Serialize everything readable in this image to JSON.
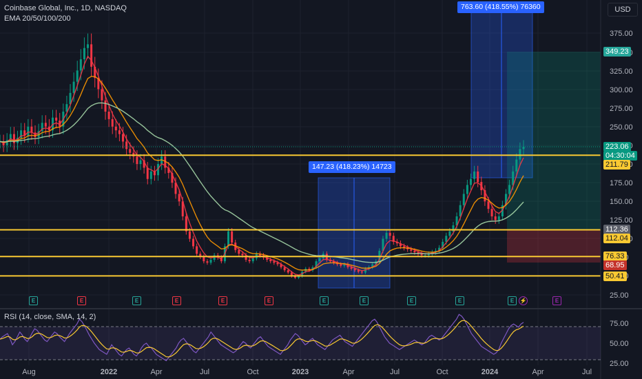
{
  "header": {
    "title": "Coinbase Global, Inc., 1D, NASDAQ",
    "indicator": "EMA 20/50/100/200",
    "currency": "USD"
  },
  "rsi": {
    "legend": "RSI (14, close, SMA, 14, 2)",
    "ticks": [
      "75.00",
      "50.00",
      "25.00"
    ],
    "series": [
      55,
      58,
      60,
      62,
      56,
      48,
      52,
      58,
      64,
      60,
      55,
      52,
      57,
      63,
      68,
      66,
      62,
      58,
      54,
      52,
      56,
      60,
      64,
      62,
      58,
      55,
      52,
      57,
      62,
      66,
      70,
      74,
      80,
      77,
      72,
      66,
      60,
      55,
      50,
      46,
      42,
      40,
      38,
      36,
      42,
      48,
      44,
      40,
      36,
      34,
      38,
      42,
      44,
      40,
      36,
      34,
      38,
      44,
      48,
      50,
      46,
      44,
      40,
      36,
      34,
      32,
      30,
      28,
      32,
      36,
      40,
      44,
      50,
      54,
      56,
      52,
      48,
      44,
      40,
      38,
      42,
      46,
      50,
      54,
      58,
      64,
      60,
      56,
      52,
      48,
      46,
      44,
      42,
      40,
      38,
      40,
      44,
      48,
      52,
      50,
      46,
      44,
      48,
      52,
      56,
      58,
      54,
      50,
      46,
      44,
      42,
      40,
      38,
      36,
      40,
      44,
      48,
      54,
      58,
      62,
      60,
      56,
      52,
      48,
      50,
      54,
      56,
      52,
      48,
      46,
      44,
      42,
      46,
      50,
      54,
      56,
      58,
      60,
      56,
      52,
      50,
      48,
      46,
      50,
      54,
      58,
      62,
      66,
      70,
      74,
      78,
      80,
      76,
      70,
      64,
      58,
      54,
      50,
      48,
      46,
      44,
      42,
      44,
      46,
      48,
      50,
      52,
      54,
      52,
      50,
      48,
      50,
      54,
      58,
      60,
      58,
      56,
      54,
      56,
      60,
      64,
      68,
      72,
      76,
      80,
      86,
      84,
      80,
      74,
      68,
      62,
      58,
      54,
      50,
      46,
      44,
      42,
      40,
      38,
      36,
      38,
      42,
      50,
      56,
      62,
      68,
      72,
      74,
      72,
      70,
      74,
      76
    ]
  },
  "price_axis": {
    "ticks": [
      "375.00",
      "350.00",
      "325.00",
      "300.00",
      "275.00",
      "250.00",
      "225.00",
      "200.00",
      "175.00",
      "150.00",
      "125.00",
      "100.00",
      "75.00",
      "50.00",
      "25.00"
    ]
  },
  "time_axis": {
    "labels": [
      "Aug",
      "2022",
      "Apr",
      "Jul",
      "Oct",
      "2023",
      "Apr",
      "Jul",
      "Oct",
      "2024",
      "Apr",
      "Jul"
    ]
  },
  "price_badges": [
    {
      "text": "349.23",
      "bg": "#26a69a",
      "fg": "#ffffff"
    },
    {
      "text": "223.06",
      "bg": "#089981",
      "fg": "#ffffff"
    },
    {
      "text": "04:30:04",
      "bg": "#089981",
      "fg": "#ffffff"
    },
    {
      "text": "211.79",
      "bg": "#f9c932",
      "fg": "#131722"
    },
    {
      "text": "112.36",
      "bg": "#5d606b",
      "fg": "#ffffff"
    },
    {
      "text": "112.04",
      "bg": "#f9c932",
      "fg": "#131722"
    },
    {
      "text": "76.33",
      "bg": "#f9c932",
      "fg": "#131722"
    },
    {
      "text": "68.95",
      "bg": "#c4332b",
      "fg": "#ffffff"
    },
    {
      "text": "50.41",
      "bg": "#f9c932",
      "fg": "#131722"
    }
  ],
  "measurements": [
    {
      "label": "147.23 (418.23%) 14723"
    },
    {
      "label": "763.60 (418.55%) 76360"
    }
  ],
  "events": [
    "E",
    "E",
    "E",
    "E",
    "E",
    "E",
    "E",
    "E",
    "E",
    "E",
    "E",
    "E",
    "E"
  ],
  "chart_data": {
    "type": "line",
    "title": "Coinbase Global, Inc., 1D, NASDAQ",
    "ylim": [
      25,
      390
    ],
    "horizontal_levels": [
      211.79,
      112.04,
      76.33,
      50.41
    ],
    "last_price": 223.06,
    "ema_values_shown": [
      112.36
    ],
    "close_series": [
      230,
      225,
      232,
      240,
      228,
      235,
      245,
      238,
      250,
      242,
      236,
      244,
      255,
      250,
      245,
      262,
      258,
      250,
      270,
      280,
      295,
      310,
      325,
      340,
      355,
      360,
      330,
      315,
      300,
      285,
      270,
      260,
      250,
      245,
      240,
      230,
      220,
      215,
      210,
      200,
      205,
      195,
      180,
      190,
      185,
      200,
      210,
      195,
      188,
      175,
      160,
      150,
      130,
      110,
      100,
      90,
      80,
      76,
      70,
      68,
      72,
      78,
      75,
      70,
      90,
      110,
      95,
      85,
      80,
      78,
      72,
      70,
      74,
      80,
      78,
      75,
      72,
      70,
      68,
      66,
      62,
      58,
      55,
      50,
      48,
      50,
      56,
      60,
      58,
      62,
      70,
      74,
      80,
      72,
      70,
      68,
      66,
      64,
      66,
      62,
      60,
      58,
      56,
      55,
      60,
      62,
      66,
      70,
      84,
      100,
      108,
      104,
      96,
      94,
      90,
      88,
      86,
      84,
      82,
      80,
      78,
      78,
      80,
      82,
      84,
      88,
      96,
      104,
      110,
      118,
      130,
      145,
      160,
      172,
      180,
      190,
      176,
      165,
      150,
      140,
      130,
      125,
      130,
      145,
      160,
      172,
      190,
      206,
      220,
      223
    ]
  },
  "rsi_bands": {
    "upper": "70",
    "lower": "30"
  }
}
